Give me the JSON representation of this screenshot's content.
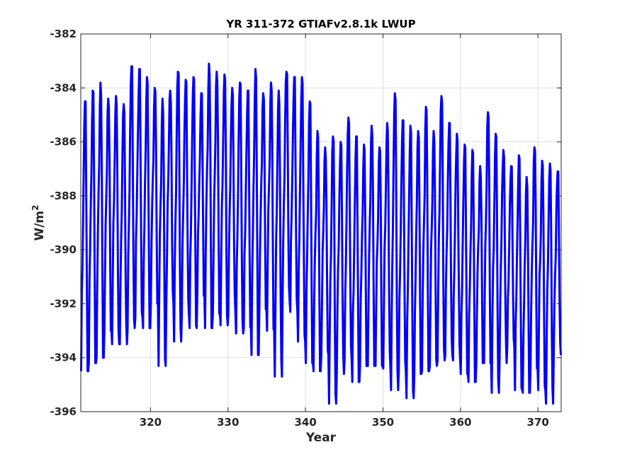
{
  "chart_data": {
    "type": "line",
    "title": "YR 311-372 GTIAFv2.8.1k LWUP",
    "xlabel": "Year",
    "ylabel_base": "W/m",
    "ylabel_exp": "2",
    "xlim": [
      311,
      373
    ],
    "ylim": [
      -396,
      -382
    ],
    "xticks": [
      320,
      330,
      340,
      350,
      360,
      370
    ],
    "xtick_labels": [
      "320",
      "330",
      "340",
      "350",
      "360",
      "370"
    ],
    "yticks": [
      -396,
      -394,
      -392,
      -390,
      -388,
      -386,
      -384,
      -382
    ],
    "ytick_labels": [
      "-396",
      "-394",
      "-392",
      "-390",
      "-388",
      "-386",
      "-384",
      "-382"
    ],
    "grid": true,
    "line_color": "#0000ff",
    "series": [
      {
        "name": "",
        "seasonal": {
          "start_year": 311,
          "years": [
            311,
            312,
            313,
            314,
            315,
            316,
            317,
            318,
            319,
            320,
            321,
            322,
            323,
            324,
            325,
            326,
            327,
            328,
            329,
            330,
            331,
            332,
            333,
            334,
            335,
            336,
            337,
            338,
            339,
            340,
            341,
            342,
            343,
            344,
            345,
            346,
            347,
            348,
            349,
            350,
            351,
            352,
            353,
            354,
            355,
            356,
            357,
            358,
            359,
            360,
            361,
            362,
            363,
            364,
            365,
            366,
            367,
            368,
            369,
            370,
            371,
            372
          ],
          "annual_max": [
            -384.5,
            -384.1,
            -383.8,
            -384.4,
            -384.3,
            -384.6,
            -383.2,
            -383.3,
            -383.6,
            -384.0,
            -384.4,
            -384.1,
            -383.4,
            -383.7,
            -383.6,
            -384.2,
            -383.1,
            -383.4,
            -383.5,
            -384.0,
            -383.8,
            -384.1,
            -383.3,
            -384.2,
            -383.8,
            -384.1,
            -383.4,
            -383.6,
            -383.6,
            -384.5,
            -385.6,
            -386.2,
            -385.8,
            -386.0,
            -385.1,
            -385.8,
            -386.1,
            -385.4,
            -386.2,
            -385.3,
            -384.2,
            -385.2,
            -385.4,
            -385.6,
            -384.7,
            -385.6,
            -384.3,
            -385.3,
            -385.7,
            -386.1,
            -386.3,
            -386.9,
            -384.9,
            -385.7,
            -386.3,
            -386.9,
            -386.5,
            -387.3,
            -386.2,
            -386.7,
            -386.8,
            -387.1
          ],
          "annual_min": [
            -394.5,
            -394.2,
            -394.0,
            -393.0,
            -393.5,
            -393.5,
            -392.9,
            -392.5,
            -392.9,
            -392.0,
            -394.3,
            -392.0,
            -393.4,
            -392.4,
            -392.9,
            -391.7,
            -392.9,
            -392.4,
            -392.8,
            -392.4,
            -393.1,
            -392.9,
            -393.9,
            -392.2,
            -393.0,
            -394.7,
            -391.9,
            -392.3,
            -393.4,
            -394.2,
            -394.5,
            -393.9,
            -395.7,
            -394.6,
            -394.1,
            -394.9,
            -394.3,
            -394.3,
            -394.3,
            -394.4,
            -395.2,
            -394.5,
            -395.5,
            -394.6,
            -394.5,
            -394.3,
            -394.1,
            -393.9,
            -394.1,
            -394.6,
            -394.9,
            -394.2,
            -394.2,
            -395.3,
            -394.2,
            -393.6,
            -395.2,
            -395.3,
            -394.4,
            -395.2,
            -395.7,
            -393.9
          ]
        }
      }
    ]
  }
}
